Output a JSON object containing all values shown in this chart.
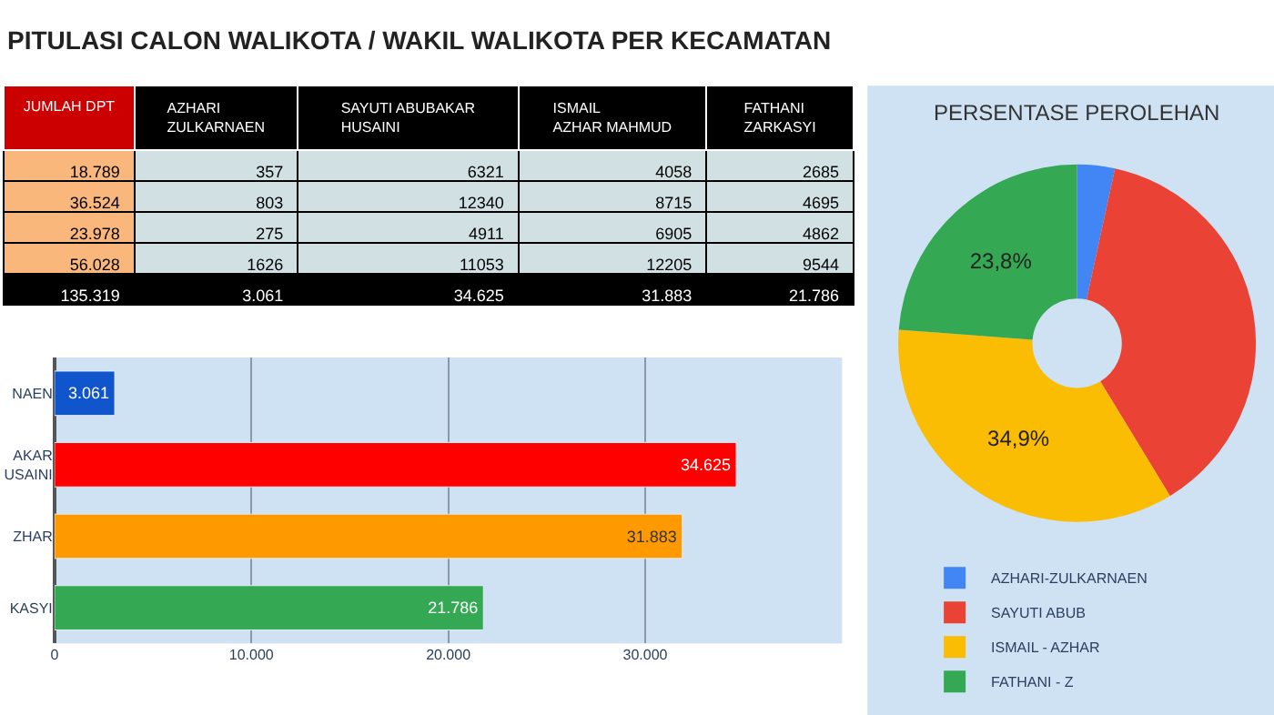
{
  "chart_data": [
    {
      "type": "other",
      "title": "PITULASI CALON WALIKOTA / WAKIL WALIKOTA PER KECAMATAN",
      "categories": [
        "JUMLAH DPT",
        "AZHARI\nZULKARNAEN",
        "SAYUTI ABUBAKAR\nHUSAINI",
        "ISMAIL\nAZHAR MAHMUD",
        "FATHANI\nZARKASYI"
      ],
      "cell_labels": [
        [
          "18.789",
          "357",
          "6321",
          "4058",
          "2685"
        ],
        [
          "36.524",
          "803",
          "12340",
          "8715",
          "4695"
        ],
        [
          "23.978",
          "275",
          "4911",
          "6905",
          "4862"
        ],
        [
          "56.028",
          "1626",
          "11053",
          "12205",
          "9544"
        ],
        [
          "135.319",
          "3.061",
          "34.625",
          "31.883",
          "21.786"
        ]
      ]
    },
    {
      "type": "bar",
      "orientation": "horizontal",
      "categories": [
        "NAEN",
        "AKAR\nUSAINI",
        "ZHAR",
        "KASYI"
      ],
      "values": [
        3061,
        34625,
        31883,
        21786
      ],
      "colors": [
        "#1155cc",
        "#ff0000",
        "#ff9900",
        "#34a853"
      ],
      "value_labels": [
        "3.061",
        "34.625",
        "31.883",
        "21.786"
      ],
      "xlim": [
        0,
        40000
      ],
      "xticks": [
        0,
        {
          "value": 10000,
          "label": "10.000"
        },
        {
          "value": 20000,
          "label": "20.000"
        },
        {
          "value": 30000,
          "label": "30.000"
        }
      ],
      "grid": "x",
      "legend": false
    },
    {
      "type": "donut",
      "title": "PERSENTASE PEROLEHAN",
      "categories": [
        "AZHARI-ZULKARNAEN",
        "SAYUTI ABUB",
        "ISMAIL - AZHAR",
        "FATHANI - Z"
      ],
      "values": [
        3.4,
        37.9,
        34.9,
        23.8
      ],
      "colors": [
        "#4285f4",
        "#ea4335",
        "#fbbc04",
        "#34a853"
      ],
      "value_labels": [
        null,
        null,
        "34,9%",
        "23,8%"
      ],
      "legend": "bottom"
    }
  ]
}
